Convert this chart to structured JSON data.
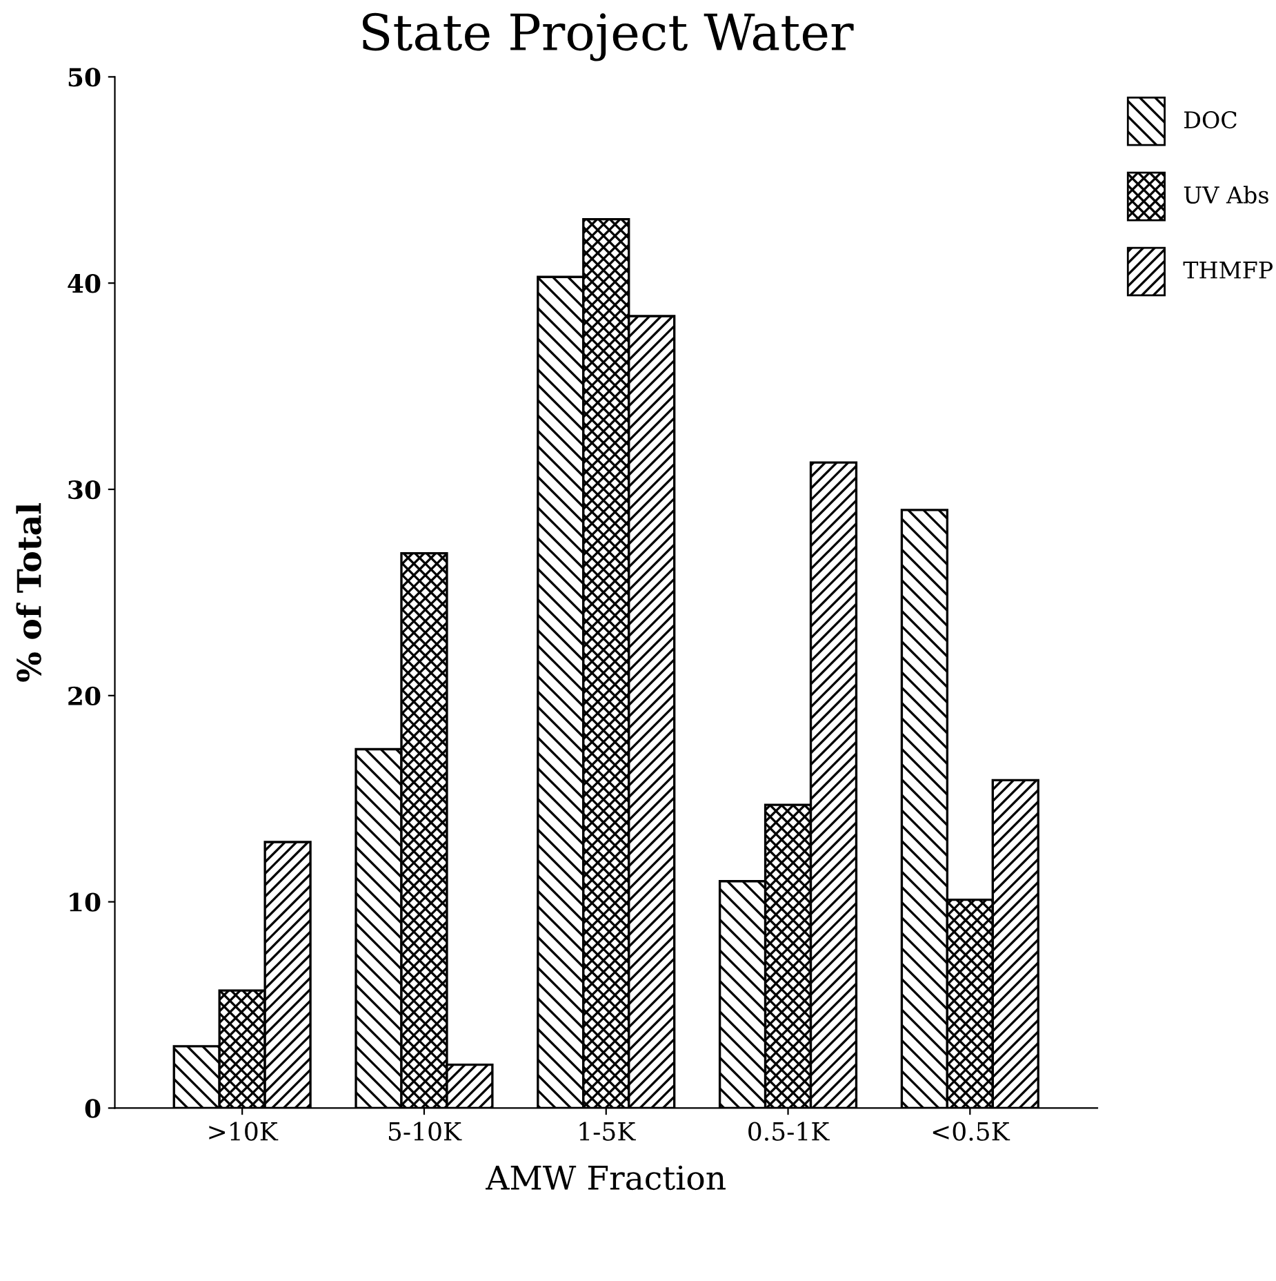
{
  "chart_data": {
    "type": "bar",
    "title": "State Project Water",
    "xlabel": "AMW Fraction",
    "ylabel": "% of Total",
    "categories": [
      ">10K",
      "5-10K",
      "1-5K",
      "0.5-1K",
      "<0.5K"
    ],
    "series": [
      {
        "name": "DOC",
        "color": "#000000",
        "values": [
          3.0,
          17.4,
          40.3,
          11.0,
          29.0
        ]
      },
      {
        "name": "UV Abs",
        "color": "#000000",
        "values": [
          5.7,
          26.9,
          43.1,
          14.7,
          10.1
        ]
      },
      {
        "name": "THMFP",
        "color": "#000000",
        "values": [
          12.9,
          2.1,
          38.4,
          31.3,
          15.9
        ]
      }
    ],
    "ylim": [
      0,
      50
    ],
    "yticks": [
      0,
      10,
      20,
      30,
      40,
      50
    ],
    "grid": false,
    "legend": "top right"
  }
}
